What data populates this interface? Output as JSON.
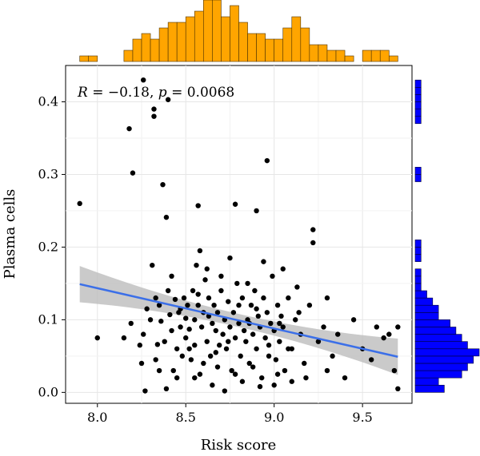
{
  "chart_data": {
    "type": "scatter",
    "xlabel": "Risk score",
    "ylabel": "Plasma cells",
    "annotation": {
      "r_label": "R",
      "r_value": "= −0.18,",
      "p_label": "p",
      "p_value": "= 0.0068"
    },
    "xlim": [
      7.82,
      9.78
    ],
    "ylim": [
      -0.015,
      0.45
    ],
    "x_ticks": [
      8.0,
      8.5,
      9.0,
      9.5
    ],
    "x_tick_labels": [
      "8.0",
      "8.5",
      "9.0",
      "9.5"
    ],
    "y_ticks": [
      0.0,
      0.1,
      0.2,
      0.3,
      0.4
    ],
    "y_tick_labels": [
      "0.0",
      "0.1",
      "0.2",
      "0.3",
      "0.4"
    ],
    "grid": true,
    "point_color": "#000000",
    "regression": {
      "x": [
        7.9,
        9.7
      ],
      "y": [
        0.149,
        0.049
      ],
      "color": "#3b6fe8",
      "ci_color": "#bdbdbd",
      "ci_halfwidth_ends": 0.025,
      "ci_halfwidth_mid": 0.009
    },
    "points": [
      [
        7.9,
        0.26
      ],
      [
        8.0,
        0.075
      ],
      [
        8.18,
        0.363
      ],
      [
        8.2,
        0.302
      ],
      [
        8.26,
        0.43
      ],
      [
        8.32,
        0.39
      ],
      [
        8.32,
        0.38
      ],
      [
        8.4,
        0.403
      ],
      [
        8.37,
        0.286
      ],
      [
        8.39,
        0.241
      ],
      [
        8.57,
        0.257
      ],
      [
        8.78,
        0.259
      ],
      [
        8.9,
        0.25
      ],
      [
        8.96,
        0.319
      ],
      [
        9.22,
        0.224
      ],
      [
        9.22,
        0.206
      ],
      [
        8.15,
        0.075
      ],
      [
        8.19,
        0.095
      ],
      [
        8.24,
        0.065
      ],
      [
        8.25,
        0.04
      ],
      [
        8.26,
        0.08
      ],
      [
        8.27,
        0.002
      ],
      [
        8.3,
        0.1
      ],
      [
        8.31,
        0.175
      ],
      [
        8.33,
        0.13
      ],
      [
        8.34,
        0.066
      ],
      [
        8.35,
        0.12
      ],
      [
        8.36,
        0.098
      ],
      [
        8.38,
        0.07
      ],
      [
        8.39,
        0.005
      ],
      [
        8.4,
        0.14
      ],
      [
        8.41,
        0.107
      ],
      [
        8.42,
        0.085
      ],
      [
        8.43,
        0.03
      ],
      [
        8.44,
        0.128
      ],
      [
        8.45,
        0.06
      ],
      [
        8.46,
        0.11
      ],
      [
        8.47,
        0.09
      ],
      [
        8.48,
        0.05
      ],
      [
        8.49,
        0.13
      ],
      [
        8.5,
        0.075
      ],
      [
        8.5,
        0.102
      ],
      [
        8.51,
        0.12
      ],
      [
        8.52,
        0.087
      ],
      [
        8.53,
        0.045
      ],
      [
        8.54,
        0.14
      ],
      [
        8.55,
        0.065
      ],
      [
        8.55,
        0.1
      ],
      [
        8.56,
        0.175
      ],
      [
        8.57,
        0.12
      ],
      [
        8.58,
        0.025
      ],
      [
        8.59,
        0.09
      ],
      [
        8.6,
        0.11
      ],
      [
        8.61,
        0.155
      ],
      [
        8.62,
        0.07
      ],
      [
        8.63,
        0.13
      ],
      [
        8.64,
        0.05
      ],
      [
        8.65,
        0.095
      ],
      [
        8.66,
        0.12
      ],
      [
        8.67,
        0.085
      ],
      [
        8.68,
        0.11
      ],
      [
        8.69,
        0.065
      ],
      [
        8.7,
        0.14
      ],
      [
        8.71,
        0.08
      ],
      [
        8.72,
        0.1
      ],
      [
        8.73,
        0.06
      ],
      [
        8.74,
        0.125
      ],
      [
        8.75,
        0.09
      ],
      [
        8.76,
        0.03
      ],
      [
        8.77,
        0.11
      ],
      [
        8.78,
        0.075
      ],
      [
        8.79,
        0.15
      ],
      [
        8.8,
        0.095
      ],
      [
        8.81,
        0.05
      ],
      [
        8.82,
        0.13
      ],
      [
        8.83,
        0.085
      ],
      [
        8.84,
        0.07
      ],
      [
        8.85,
        0.1
      ],
      [
        8.86,
        0.04
      ],
      [
        8.87,
        0.12
      ],
      [
        8.88,
        0.08
      ],
      [
        8.89,
        0.14
      ],
      [
        8.9,
        0.06
      ],
      [
        8.91,
        0.105
      ],
      [
        8.92,
        0.09
      ],
      [
        8.93,
        0.02
      ],
      [
        8.94,
        0.13
      ],
      [
        8.95,
        0.075
      ],
      [
        8.96,
        0.11
      ],
      [
        8.97,
        0.05
      ],
      [
        8.98,
        0.095
      ],
      [
        8.99,
        0.16
      ],
      [
        9.0,
        0.085
      ],
      [
        9.01,
        0.045
      ],
      [
        9.02,
        0.12
      ],
      [
        9.03,
        0.07
      ],
      [
        9.04,
        0.105
      ],
      [
        9.05,
        0.09
      ],
      [
        9.06,
        0.03
      ],
      [
        9.08,
        0.13
      ],
      [
        9.1,
        0.06
      ],
      [
        9.12,
        0.1
      ],
      [
        9.15,
        0.08
      ],
      [
        9.17,
        0.04
      ],
      [
        9.2,
        0.12
      ],
      [
        9.25,
        0.07
      ],
      [
        9.28,
        0.09
      ],
      [
        9.3,
        0.13
      ],
      [
        9.33,
        0.05
      ],
      [
        9.36,
        0.08
      ],
      [
        9.4,
        0.02
      ],
      [
        9.45,
        0.1
      ],
      [
        9.5,
        0.06
      ],
      [
        9.55,
        0.045
      ],
      [
        9.58,
        0.09
      ],
      [
        9.62,
        0.075
      ],
      [
        9.65,
        0.08
      ],
      [
        9.68,
        0.03
      ],
      [
        9.7,
        0.09
      ],
      [
        9.7,
        0.005
      ],
      [
        8.55,
        0.02
      ],
      [
        8.65,
        0.01
      ],
      [
        8.72,
        0.002
      ],
      [
        8.82,
        0.015
      ],
      [
        8.92,
        0.008
      ],
      [
        9.0,
        0.01
      ],
      [
        9.1,
        0.015
      ],
      [
        9.18,
        0.02
      ],
      [
        8.45,
        0.02
      ],
      [
        8.35,
        0.03
      ],
      [
        8.6,
        0.04
      ],
      [
        8.68,
        0.035
      ],
      [
        8.78,
        0.025
      ],
      [
        8.88,
        0.035
      ],
      [
        9.02,
        0.025
      ],
      [
        9.3,
        0.03
      ],
      [
        8.58,
        0.195
      ],
      [
        8.62,
        0.17
      ],
      [
        8.7,
        0.16
      ],
      [
        8.75,
        0.185
      ],
      [
        8.85,
        0.15
      ],
      [
        8.94,
        0.18
      ],
      [
        9.05,
        0.17
      ],
      [
        9.13,
        0.145
      ],
      [
        8.28,
        0.115
      ],
      [
        8.33,
        0.045
      ],
      [
        8.42,
        0.16
      ],
      [
        8.47,
        0.115
      ],
      [
        8.52,
        0.06
      ],
      [
        8.57,
        0.135
      ],
      [
        8.63,
        0.105
      ],
      [
        8.67,
        0.055
      ],
      [
        8.74,
        0.07
      ],
      [
        8.8,
        0.12
      ],
      [
        8.86,
        0.095
      ],
      [
        8.9,
        0.115
      ],
      [
        8.97,
        0.065
      ],
      [
        9.03,
        0.095
      ],
      [
        9.08,
        0.06
      ],
      [
        9.14,
        0.11
      ]
    ],
    "x_hist": {
      "color": "#ffa500",
      "edge": "#4d3300",
      "start": 7.9,
      "bin": 0.05,
      "counts": [
        1,
        1,
        0,
        0,
        0,
        2,
        4,
        5,
        4,
        6,
        7,
        7,
        8,
        9,
        11,
        11,
        8,
        10,
        7,
        5,
        5,
        4,
        4,
        6,
        8,
        6,
        3,
        3,
        2,
        2,
        1,
        0,
        2,
        2,
        2,
        1
      ]
    },
    "y_hist": {
      "color": "#0000ff",
      "edge": "#000033",
      "start": 0.0,
      "bin": 0.01,
      "counts": [
        5,
        4,
        8,
        9,
        10,
        11,
        9,
        8,
        7,
        6,
        4,
        4,
        3,
        2,
        1,
        1,
        1,
        0,
        1,
        1,
        1,
        0,
        0,
        0,
        0,
        0,
        0,
        0,
        0,
        1,
        1,
        0,
        0,
        0,
        0,
        0,
        0,
        1,
        1,
        1,
        1,
        1,
        1
      ]
    }
  }
}
